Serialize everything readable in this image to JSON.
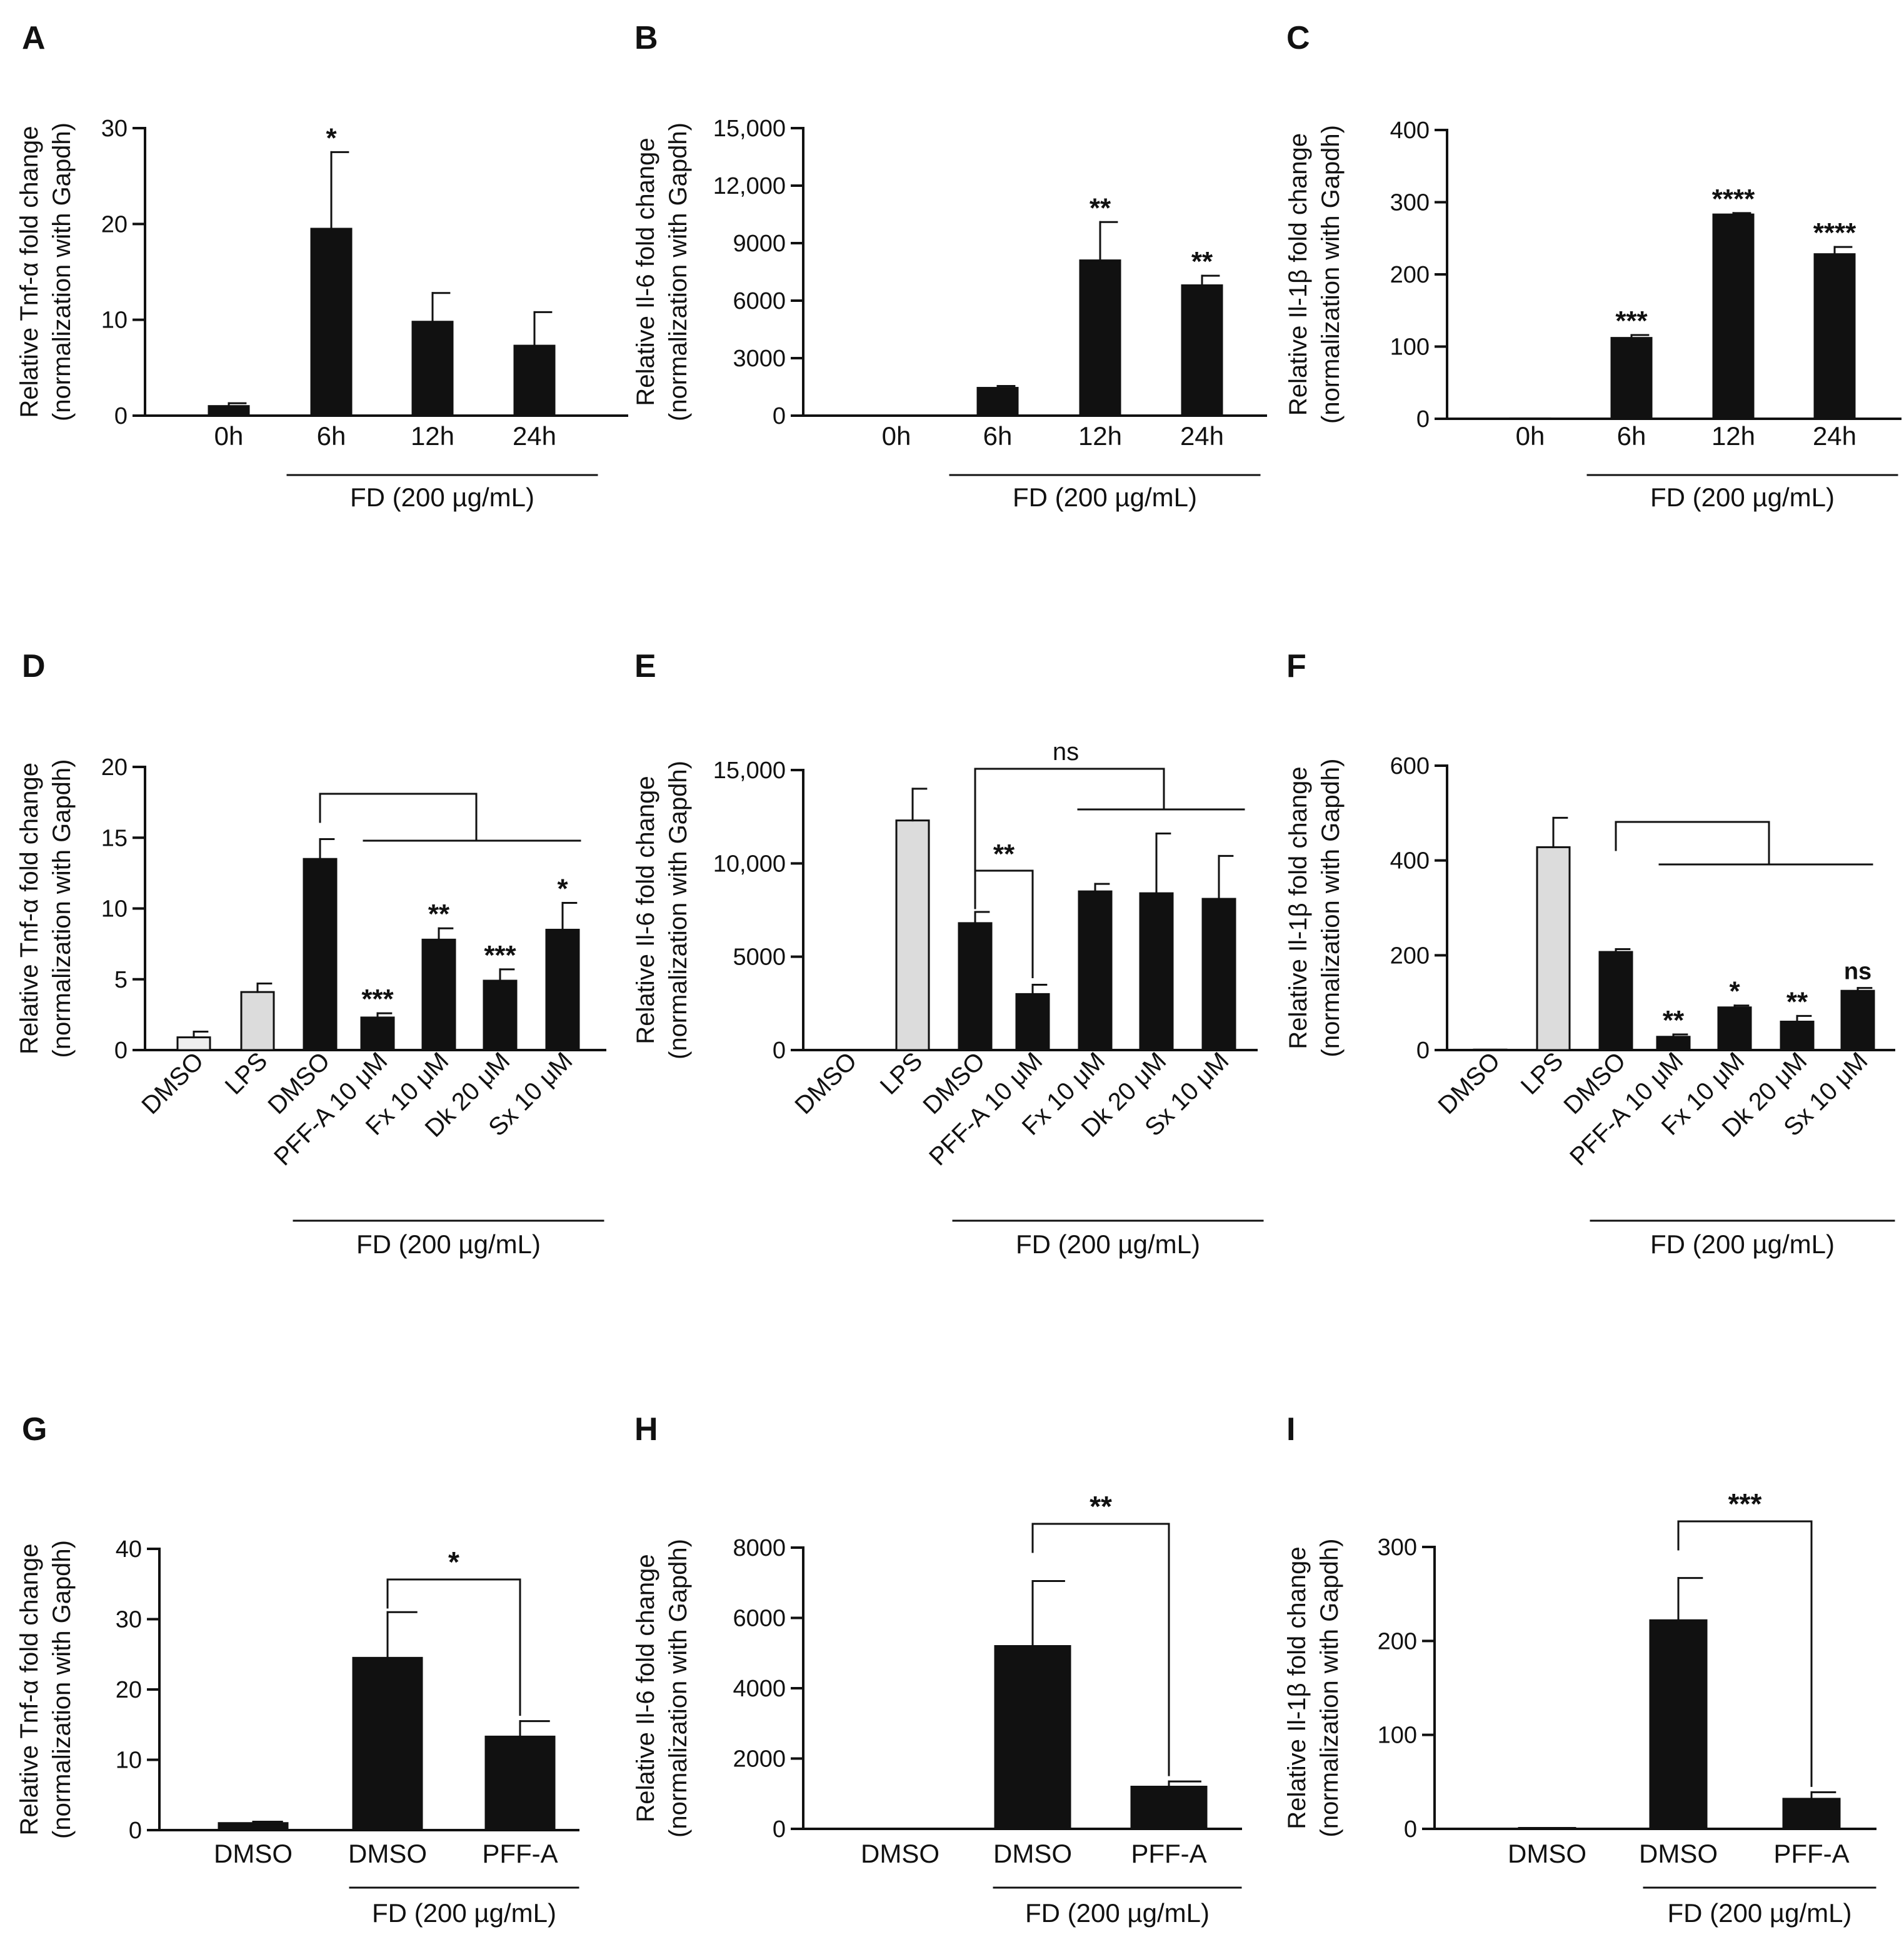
{
  "figure": {
    "fd_label": "FD (200 µg/mL)"
  },
  "chart_data": [
    {
      "panel": "A",
      "type": "bar",
      "ylabel": [
        "Relative Tnf-α fold change",
        "(normalization with Gapdh)"
      ],
      "categories": [
        "0h",
        "6h",
        "12h",
        "24h"
      ],
      "values": [
        1,
        19.5,
        9.8,
        7.3
      ],
      "errors": [
        0.3,
        8,
        3,
        3.5
      ],
      "bar_colors": [
        "#111111",
        "#111111",
        "#111111",
        "#111111"
      ],
      "sig": [
        "",
        "*",
        "",
        ""
      ],
      "ylim": [
        0,
        30
      ],
      "yticks": [
        0,
        10,
        20,
        30
      ],
      "ytick_labels": [
        "0",
        "10",
        "20",
        "30"
      ],
      "fd_group": [
        1,
        3
      ],
      "grid": false
    },
    {
      "panel": "B",
      "type": "bar",
      "ylabel": [
        "Relative Il-6 fold change",
        "(normalization with Gapdh)"
      ],
      "categories": [
        "0h",
        "6h",
        "12h",
        "24h"
      ],
      "values": [
        1,
        1450,
        8100,
        6800
      ],
      "errors": [
        0,
        100,
        2000,
        500
      ],
      "bar_colors": [
        "#111111",
        "#111111",
        "#111111",
        "#111111"
      ],
      "sig": [
        "",
        "",
        "**",
        "**"
      ],
      "ylim": [
        0,
        15000
      ],
      "yticks": [
        0,
        3000,
        6000,
        9000,
        12000,
        15000
      ],
      "ytick_labels": [
        "0",
        "3000",
        "6000",
        "9000",
        "12,000",
        "15,000"
      ],
      "fd_group": [
        1,
        3
      ],
      "grid": false
    },
    {
      "panel": "C",
      "type": "bar",
      "ylabel": [
        "Relative Il-1β fold change",
        "(normalization with Gapdh)"
      ],
      "categories": [
        "0h",
        "6h",
        "12h",
        "24h"
      ],
      "values": [
        0.5,
        112,
        283,
        228
      ],
      "errors": [
        0,
        4,
        2,
        10
      ],
      "bar_colors": [
        "#111111",
        "#111111",
        "#111111",
        "#111111"
      ],
      "sig": [
        "",
        "***",
        "****",
        "****"
      ],
      "ylim": [
        0,
        400
      ],
      "yticks": [
        0,
        100,
        200,
        300,
        400
      ],
      "ytick_labels": [
        "0",
        "100",
        "200",
        "300",
        "400"
      ],
      "fd_group": [
        1,
        3
      ],
      "grid": false
    },
    {
      "panel": "D",
      "type": "bar",
      "ylabel": [
        "Relative Tnf-α fold change",
        "(normalization with Gapdh)"
      ],
      "categories": [
        "DMSO",
        "LPS",
        "DMSO",
        "PFF-A 10 μM",
        "Fx 10 μM",
        "Dk 20 μM",
        "Sx 10 μM"
      ],
      "values": [
        0.9,
        4.1,
        13.5,
        2.3,
        7.8,
        4.9,
        8.5
      ],
      "errors": [
        0.4,
        0.6,
        1.4,
        0.3,
        0.8,
        0.8,
        1.9
      ],
      "bar_colors": [
        "#eeeeee",
        "#dcdcdc",
        "#111111",
        "#111111",
        "#111111",
        "#111111",
        "#111111"
      ],
      "sig": [
        "",
        "",
        "",
        "***",
        "**",
        "***",
        "*"
      ],
      "ylim": [
        0,
        20
      ],
      "yticks": [
        0,
        5,
        10,
        15,
        20
      ],
      "ytick_labels": [
        "0",
        "5",
        "10",
        "15",
        "20"
      ],
      "fd_group": [
        2,
        6
      ],
      "grid": false
    },
    {
      "panel": "E",
      "type": "bar",
      "ylabel": [
        "Relative Il-6 fold change",
        "(normalization with Gapdh)"
      ],
      "categories": [
        "DMSO",
        "LPS",
        "DMSO",
        "PFF-A 10 μM",
        "Fx 10 μM",
        "Dk 20 μM",
        "Sx 10 μM"
      ],
      "values": [
        1,
        12300,
        6800,
        3000,
        8500,
        8400,
        8100
      ],
      "errors": [
        0,
        1700,
        600,
        500,
        400,
        3200,
        2300
      ],
      "bar_colors": [
        "#eeeeee",
        "#dcdcdc",
        "#111111",
        "#111111",
        "#111111",
        "#111111",
        "#111111"
      ],
      "sig": [
        "",
        "",
        "",
        "",
        "",
        "",
        ""
      ],
      "brackets": [
        "**",
        "ns"
      ],
      "ylim": [
        0,
        15000
      ],
      "yticks": [
        0,
        5000,
        10000,
        15000
      ],
      "ytick_labels": [
        "0",
        "5000",
        "10,000",
        "15,000"
      ],
      "fd_group": [
        2,
        6
      ],
      "grid": false
    },
    {
      "panel": "F",
      "type": "bar",
      "ylabel": [
        "Relative Il-1β fold change",
        "(normalization with Gapdh)"
      ],
      "categories": [
        "DMSO",
        "LPS",
        "DMSO",
        "PFF-A 10 μM",
        "Fx 10 μM",
        "Dk 20 μM",
        "Sx 10 μM"
      ],
      "values": [
        1,
        428,
        207,
        28,
        90,
        60,
        125
      ],
      "errors": [
        0,
        62,
        6,
        5,
        4,
        12,
        6
      ],
      "bar_colors": [
        "#eeeeee",
        "#dcdcdc",
        "#111111",
        "#111111",
        "#111111",
        "#111111",
        "#111111"
      ],
      "sig": [
        "",
        "",
        "",
        "**",
        "*",
        "**",
        "ns"
      ],
      "ylim": [
        0,
        600
      ],
      "yticks": [
        0,
        200,
        400,
        600
      ],
      "ytick_labels": [
        "0",
        "200",
        "400",
        "600"
      ],
      "fd_group": [
        2,
        6
      ],
      "grid": false
    },
    {
      "panel": "G",
      "type": "bar",
      "ylabel": [
        "Relative Tnf-α fold change",
        "(normalization with Gapdh)"
      ],
      "categories": [
        "DMSO",
        "DMSO",
        "PFF-A"
      ],
      "values": [
        1,
        24.5,
        13.3
      ],
      "errors": [
        0.2,
        6.5,
        2.2
      ],
      "bar_colors": [
        "#111111",
        "#111111",
        "#111111"
      ],
      "sig": [
        "",
        "",
        ""
      ],
      "brackets": [
        "*"
      ],
      "ylim": [
        0,
        40
      ],
      "yticks": [
        0,
        10,
        20,
        30,
        40
      ],
      "ytick_labels": [
        "0",
        "10",
        "20",
        "30",
        "40"
      ],
      "fd_group": [
        1,
        2
      ],
      "grid": false
    },
    {
      "panel": "H",
      "type": "bar",
      "ylabel": [
        "Relative Il-6 fold change",
        "(normalization with Gapdh)"
      ],
      "categories": [
        "DMSO",
        "DMSO",
        "PFF-A"
      ],
      "values": [
        1,
        5200,
        1200
      ],
      "errors": [
        0,
        1850,
        150
      ],
      "bar_colors": [
        "#111111",
        "#111111",
        "#111111"
      ],
      "sig": [
        "",
        "",
        ""
      ],
      "brackets": [
        "**"
      ],
      "ylim": [
        0,
        8000
      ],
      "yticks": [
        0,
        2000,
        4000,
        6000,
        8000
      ],
      "ytick_labels": [
        "0",
        "2000",
        "4000",
        "6000",
        "8000"
      ],
      "fd_group": [
        1,
        2
      ],
      "grid": false
    },
    {
      "panel": "I",
      "type": "bar",
      "ylabel": [
        "Relative Il-1β fold change",
        "(normalization with Gapdh)"
      ],
      "categories": [
        "DMSO",
        "DMSO",
        "PFF-A"
      ],
      "values": [
        1,
        222,
        32
      ],
      "errors": [
        0,
        45,
        7
      ],
      "bar_colors": [
        "#111111",
        "#111111",
        "#111111"
      ],
      "sig": [
        "",
        "",
        ""
      ],
      "brackets": [
        "***"
      ],
      "ylim": [
        0,
        300
      ],
      "yticks": [
        0,
        100,
        200,
        300
      ],
      "ytick_labels": [
        "0",
        "100",
        "200",
        "300"
      ],
      "fd_group": [
        1,
        2
      ],
      "grid": false
    }
  ]
}
